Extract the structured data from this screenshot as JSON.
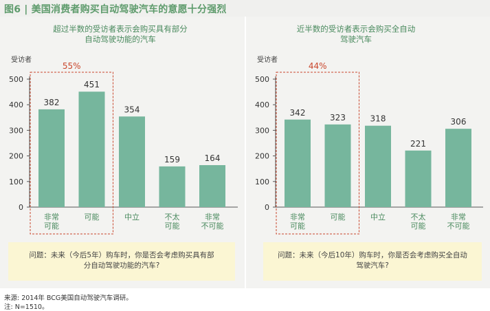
{
  "figure": {
    "title": "图6 | 美国消费者购买自动驾驶汽车的意愿十分强烈",
    "source": "来源: 2014年 BCG美国自动驾驶汽车调研。",
    "note": "注: N=1510。"
  },
  "colors": {
    "bar": "#76b69d",
    "highlight": "#c9462c",
    "title": "#5e9b6c",
    "subtitle": "#4a8a5e",
    "question_bg": "#fbf6d3"
  },
  "chart_data": [
    {
      "type": "bar",
      "title": [
        "超过半数的受访者表示会购买具有部分",
        "自动驾驶功能的汽车"
      ],
      "ylabel": "受访者",
      "ylim": [
        0,
        500
      ],
      "yticks": [
        0,
        100,
        200,
        300,
        400,
        500
      ],
      "categories": [
        [
          "非常",
          "可能"
        ],
        [
          "可能"
        ],
        [
          "中立"
        ],
        [
          "不太",
          "可能"
        ],
        [
          "非常",
          "不可能"
        ]
      ],
      "values": [
        382,
        451,
        354,
        159,
        164
      ],
      "highlight": {
        "label": "55%",
        "categories": [
          0,
          1
        ]
      },
      "question": [
        "问题：未来（今后5年）购车时，你是否会考虑购买具有部",
        "分自动驾驶功能的汽车?"
      ]
    },
    {
      "type": "bar",
      "title": [
        "近半数的受访者表示会购买全自动",
        "驾驶汽车"
      ],
      "ylabel": "受访者",
      "ylim": [
        0,
        500
      ],
      "yticks": [
        0,
        100,
        200,
        300,
        400,
        500
      ],
      "categories": [
        [
          "非常",
          "可能"
        ],
        [
          "可能"
        ],
        [
          "中立"
        ],
        [
          "不太",
          "可能"
        ],
        [
          "非常",
          "不可能"
        ]
      ],
      "values": [
        342,
        323,
        318,
        221,
        306
      ],
      "highlight": {
        "label": "44%",
        "categories": [
          0,
          1
        ]
      },
      "question": [
        "问题：未来（今后10年）购车时，你是否会考虑购买全自动",
        "驾驶汽车?"
      ]
    }
  ]
}
